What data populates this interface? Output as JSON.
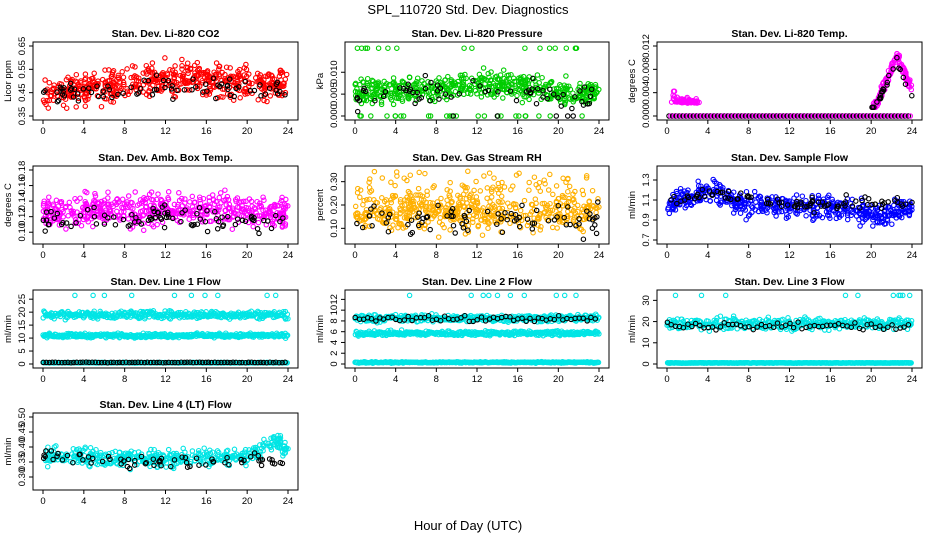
{
  "figure": {
    "title": "SPL_110720  Std. Dev. Diagnostics",
    "xlabel": "Hour of Day (UTC)"
  },
  "chart_data": [
    {
      "type": "scatter",
      "title": "Stan. Dev. Li-820 CO2",
      "ylabel": "Licor ppm",
      "xlim": [
        0,
        24
      ],
      "ylim": [
        0.35,
        0.65
      ],
      "xticks": [
        "0",
        "4",
        "8",
        "12",
        "16",
        "20",
        "24"
      ],
      "yticks": [
        "0.35",
        "0.45",
        "0.55",
        "0.65"
      ],
      "colors": {
        "main": "#ff0000",
        "overlay": "#000000"
      },
      "series": [
        {
          "color": "#ff0000",
          "description": "dense cloud",
          "x_range": [
            0,
            24
          ],
          "y_trend": [
            [
              0,
              0.45
            ],
            [
              6,
              0.47
            ],
            [
              12,
              0.52
            ],
            [
              18,
              0.5
            ],
            [
              24,
              0.48
            ]
          ],
          "spread": 0.06
        },
        {
          "color": "#000000",
          "description": "sparse points",
          "x_range": [
            0,
            24
          ],
          "y_trend": [
            [
              0,
              0.44
            ],
            [
              12,
              0.47
            ],
            [
              24,
              0.46
            ]
          ],
          "spread": 0.04
        }
      ]
    },
    {
      "type": "scatter",
      "title": "Stan. Dev. Li-820 Pressure",
      "ylabel": "kPa",
      "xlim": [
        0,
        24
      ],
      "ylim": [
        0,
        0.016
      ],
      "xticks": [
        "0",
        "4",
        "8",
        "12",
        "16",
        "20",
        "24"
      ],
      "yticks": [
        "0.000",
        "0.005",
        "0.010"
      ],
      "colors": {
        "main": "#00cc00",
        "overlay": "#000000"
      },
      "series": [
        {
          "color": "#00cc00",
          "description": "dense band",
          "x_range": [
            0,
            24
          ],
          "y_trend": [
            [
              0,
              0.0055
            ],
            [
              8,
              0.006
            ],
            [
              13,
              0.0075
            ],
            [
              20,
              0.006
            ],
            [
              24,
              0.005
            ]
          ],
          "spread": 0.0025
        },
        {
          "color": "#000000",
          "description": "sparse points",
          "x_range": [
            0,
            24
          ],
          "y_trend": [
            [
              0,
              0.004
            ],
            [
              12,
              0.0065
            ],
            [
              24,
              0.004
            ]
          ],
          "spread": 0.0025
        }
      ]
    },
    {
      "type": "scatter",
      "title": "Stan. Dev. Li-820 Temp.",
      "ylabel": "degrees C",
      "xlim": [
        0,
        24
      ],
      "ylim": [
        0,
        0.012
      ],
      "xticks": [
        "0",
        "4",
        "8",
        "12",
        "16",
        "20",
        "24"
      ],
      "yticks": [
        "0.000",
        "0.004",
        "0.008",
        "0.012"
      ],
      "colors": {
        "main": "#ff00ff",
        "overlay": "#000000"
      },
      "series": [
        {
          "color": "#ff00ff",
          "description": "baseline at zero with early bump (0-3 h) and late rise (20-24 h)",
          "x_range": [
            0,
            24
          ]
        },
        {
          "color": "#000000",
          "description": "baseline at zero, rise after 20 h",
          "x_range": [
            0,
            24
          ]
        }
      ]
    },
    {
      "type": "scatter",
      "title": "Stan. Dev. Amb. Box Temp.",
      "ylabel": "degrees C",
      "xlim": [
        0,
        24
      ],
      "ylim": [
        0.09,
        0.18
      ],
      "xticks": [
        "0",
        "4",
        "8",
        "12",
        "16",
        "20",
        "24"
      ],
      "yticks": [
        "0.10",
        "0.12",
        "0.14",
        "0.16",
        "0.18"
      ],
      "colors": {
        "main": "#ff00ff",
        "overlay": "#000000"
      },
      "series": [
        {
          "color": "#ff00ff",
          "description": "dense cloud",
          "x_range": [
            0,
            24
          ],
          "y_trend": [
            [
              0,
              0.125
            ],
            [
              12,
              0.13
            ],
            [
              24,
              0.125
            ]
          ],
          "spread": 0.018
        },
        {
          "color": "#000000",
          "description": "sparse points",
          "x_range": [
            0,
            24
          ],
          "y_trend": [
            [
              0,
              0.115
            ],
            [
              12,
              0.12
            ],
            [
              24,
              0.11
            ]
          ],
          "spread": 0.012
        }
      ]
    },
    {
      "type": "scatter",
      "title": "Stan. Dev. Gas Stream RH",
      "ylabel": "percent",
      "xlim": [
        0,
        24
      ],
      "ylim": [
        0.05,
        0.35
      ],
      "xticks": [
        "0",
        "4",
        "8",
        "12",
        "16",
        "20",
        "24"
      ],
      "yticks": [
        "0.10",
        "0.20",
        "0.30"
      ],
      "colors": {
        "main": "#ffb000",
        "overlay": "#000000"
      },
      "series": [
        {
          "color": "#ffb000",
          "description": "dense band with spikes",
          "x_range": [
            0,
            24
          ],
          "y_trend": [
            [
              0,
              0.17
            ],
            [
              12,
              0.17
            ],
            [
              24,
              0.17
            ]
          ],
          "spread": 0.07
        },
        {
          "color": "#000000",
          "description": "sparse points",
          "x_range": [
            0,
            24
          ],
          "y_trend": [
            [
              0,
              0.14
            ],
            [
              24,
              0.14
            ]
          ],
          "spread": 0.06
        }
      ]
    },
    {
      "type": "scatter",
      "title": "Stan. Dev. Sample Flow",
      "ylabel": "ml/min",
      "xlim": [
        0,
        24
      ],
      "ylim": [
        0.7,
        1.4
      ],
      "xticks": [
        "0",
        "4",
        "8",
        "12",
        "16",
        "20",
        "24"
      ],
      "yticks": [
        "0.7",
        "0.9",
        "1.1",
        "1.3"
      ],
      "colors": {
        "main": "#0000ff",
        "overlay": "#000000"
      },
      "series": [
        {
          "color": "#0000ff",
          "description": "dense cloud",
          "x_range": [
            0,
            24
          ],
          "y_trend": [
            [
              0,
              1.05
            ],
            [
              4,
              1.2
            ],
            [
              8,
              1.05
            ],
            [
              16,
              1.02
            ],
            [
              21,
              0.95
            ],
            [
              24,
              1.05
            ]
          ],
          "spread": 0.1
        },
        {
          "color": "#000000",
          "description": "sparse points",
          "x_range": [
            0,
            24
          ],
          "y_trend": [
            [
              0,
              1.08
            ],
            [
              4,
              1.18
            ],
            [
              12,
              1.05
            ],
            [
              24,
              1.08
            ]
          ],
          "spread": 0.06
        }
      ]
    },
    {
      "type": "scatter",
      "title": "Stan. Dev. Line 1 Flow",
      "ylabel": "ml/min",
      "xlim": [
        0,
        24
      ],
      "ylim": [
        0,
        27
      ],
      "xticks": [
        "0",
        "4",
        "8",
        "12",
        "16",
        "20",
        "24"
      ],
      "yticks": [
        "0",
        "5",
        "10",
        "15",
        "20",
        "25"
      ],
      "colors": {
        "main": "#00e5e5",
        "overlay": "#000000"
      },
      "series": [
        {
          "color": "#00e5e5",
          "description": "upper band",
          "x_range": [
            0,
            24
          ],
          "y_trend": [
            [
              0,
              19
            ],
            [
              24,
              19
            ]
          ],
          "spread": 1.3
        },
        {
          "color": "#00e5e5",
          "description": "middle band",
          "x_range": [
            0,
            24
          ],
          "y_trend": [
            [
              0,
              11
            ],
            [
              24,
              11
            ]
          ],
          "spread": 0.7
        },
        {
          "color": "#00e5e5",
          "description": "baseline",
          "x_range": [
            0,
            24
          ],
          "y_trend": [
            [
              0,
              0.5
            ],
            [
              24,
              0.5
            ]
          ],
          "spread": 0.1
        },
        {
          "color": "#000000",
          "description": "baseline points",
          "x_range": [
            0,
            24
          ],
          "y_trend": [
            [
              0,
              0.6
            ],
            [
              24,
              0.6
            ]
          ],
          "spread": 0.1
        }
      ]
    },
    {
      "type": "scatter",
      "title": "Stan. Dev. Line 2 Flow",
      "ylabel": "ml/min",
      "xlim": [
        0,
        24
      ],
      "ylim": [
        0,
        13
      ],
      "xticks": [
        "0",
        "4",
        "8",
        "12",
        "16",
        "20",
        "24"
      ],
      "yticks": [
        "0",
        "2",
        "4",
        "6",
        "8",
        "10",
        "12"
      ],
      "colors": {
        "main": "#00e5e5",
        "overlay": "#000000"
      },
      "series": [
        {
          "color": "#00e5e5",
          "description": "upper band",
          "x_range": [
            0,
            24
          ],
          "y_trend": [
            [
              0,
              8.5
            ],
            [
              24,
              8.5
            ]
          ],
          "spread": 0.6
        },
        {
          "color": "#00e5e5",
          "description": "lower band",
          "x_range": [
            0,
            24
          ],
          "y_trend": [
            [
              0,
              5.7
            ],
            [
              24,
              5.7
            ]
          ],
          "spread": 0.4
        },
        {
          "color": "#00e5e5",
          "description": "baseline",
          "x_range": [
            0,
            24
          ],
          "y_trend": [
            [
              0,
              0.3
            ],
            [
              24,
              0.3
            ]
          ],
          "spread": 0.1
        },
        {
          "color": "#000000",
          "description": "sparse points",
          "x_range": [
            0,
            24
          ],
          "y_trend": [
            [
              0,
              8.4
            ],
            [
              24,
              8.4
            ]
          ],
          "spread": 0.5
        }
      ]
    },
    {
      "type": "scatter",
      "title": "Stan. Dev. Line 3 Flow",
      "ylabel": "ml/min",
      "xlim": [
        0,
        24
      ],
      "ylim": [
        0,
        33
      ],
      "xticks": [
        "0",
        "4",
        "8",
        "12",
        "16",
        "20",
        "24"
      ],
      "yticks": [
        "0",
        "10",
        "20",
        "30"
      ],
      "colors": {
        "main": "#00e5e5",
        "overlay": "#000000"
      },
      "series": [
        {
          "color": "#00e5e5",
          "description": "main band",
          "x_range": [
            0,
            24
          ],
          "y_trend": [
            [
              0,
              19
            ],
            [
              24,
              19
            ]
          ],
          "spread": 2.5
        },
        {
          "color": "#00e5e5",
          "description": "baseline",
          "x_range": [
            0,
            24
          ],
          "y_trend": [
            [
              0,
              0.5
            ],
            [
              24,
              0.5
            ]
          ],
          "spread": 0.1
        },
        {
          "color": "#000000",
          "description": "sparse points",
          "x_range": [
            0,
            24
          ],
          "y_trend": [
            [
              0,
              18
            ],
            [
              24,
              18
            ]
          ],
          "spread": 1.5
        }
      ]
    },
    {
      "type": "scatter",
      "title": "Stan. Dev. Line 4 (LT) Flow",
      "ylabel": "ml/min",
      "xlim": [
        0,
        24
      ],
      "ylim": [
        0.27,
        0.5
      ],
      "xticks": [
        "0",
        "4",
        "8",
        "12",
        "16",
        "20",
        "24"
      ],
      "yticks": [
        "0.30",
        "0.35",
        "0.40",
        "0.45",
        "0.50"
      ],
      "colors": {
        "main": "#00e5e5",
        "overlay": "#000000"
      },
      "series": [
        {
          "color": "#00e5e5",
          "description": "dense cloud",
          "x_range": [
            0,
            24
          ],
          "y_trend": [
            [
              0,
              0.37
            ],
            [
              12,
              0.36
            ],
            [
              20,
              0.37
            ],
            [
              23,
              0.42
            ],
            [
              24,
              0.38
            ]
          ],
          "spread": 0.025
        },
        {
          "color": "#000000",
          "description": "sparse points",
          "x_range": [
            0,
            24
          ],
          "y_trend": [
            [
              0,
              0.37
            ],
            [
              12,
              0.35
            ],
            [
              24,
              0.35
            ]
          ],
          "spread": 0.02
        }
      ]
    }
  ]
}
